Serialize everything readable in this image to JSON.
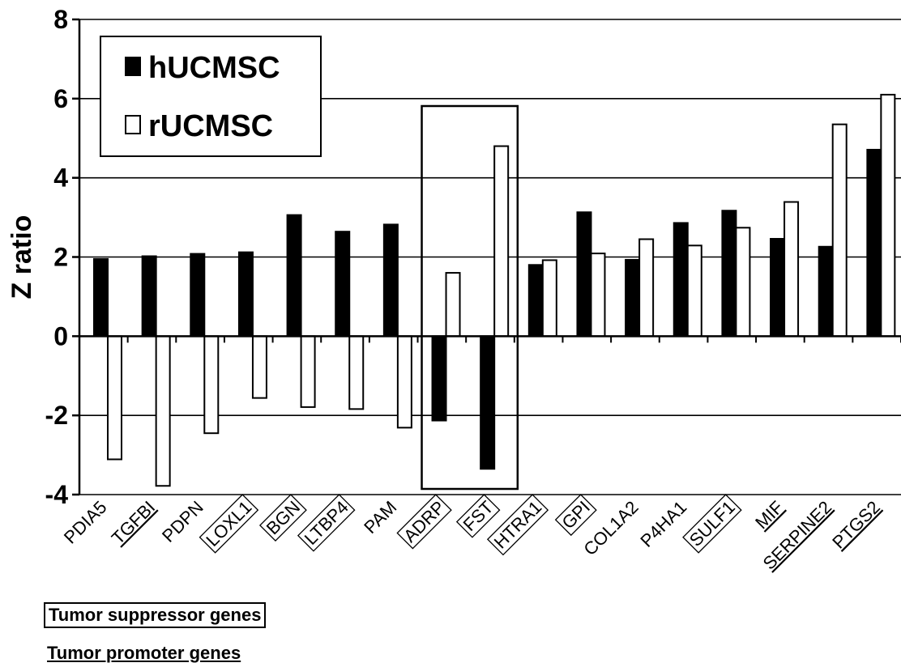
{
  "chart_data": {
    "type": "bar",
    "title": "",
    "xlabel": "",
    "ylabel": "Z ratio",
    "ylim": [
      -4,
      8
    ],
    "yticks": [
      -4,
      -2,
      0,
      2,
      4,
      6,
      8
    ],
    "grid": true,
    "legend_position": "top-left",
    "categories": [
      "PDIA5",
      "TGFBI",
      "PDPN",
      "LOXL1",
      "BGN",
      "LTBP4",
      "PAM",
      "ADRP",
      "FST",
      "HTRA1",
      "GPI",
      "COL1A2",
      "P4HA1",
      "SULF1",
      "MIF",
      "SERPINE2",
      "PTGS2"
    ],
    "category_marks": {
      "boxed": [
        "LOXL1",
        "BGN",
        "LTBP4",
        "ADRP",
        "FST",
        "HTRA1",
        "GPI",
        "SULF1"
      ],
      "underlined": [
        "TGFBI",
        "MIF",
        "SERPINE2",
        "PTGS2"
      ]
    },
    "highlight_box_categories": [
      "ADRP",
      "FST"
    ],
    "series": [
      {
        "name": "hUCMSC",
        "color": "#000000",
        "values": [
          1.95,
          2.02,
          2.08,
          2.12,
          3.06,
          2.64,
          2.82,
          -2.13,
          -3.35,
          1.8,
          3.13,
          1.93,
          2.86,
          3.17,
          2.46,
          2.26,
          4.71
        ]
      },
      {
        "name": "rUCMSC",
        "color": "#ffffff",
        "values": [
          -3.11,
          -3.78,
          -2.45,
          -1.56,
          -1.79,
          -1.84,
          -2.31,
          1.6,
          4.8,
          1.92,
          2.09,
          2.45,
          2.29,
          2.74,
          3.39,
          5.35,
          6.1
        ]
      }
    ]
  },
  "notes": {
    "suppressor": "Tumor suppressor genes",
    "promoter": "Tumor promoter genes"
  }
}
